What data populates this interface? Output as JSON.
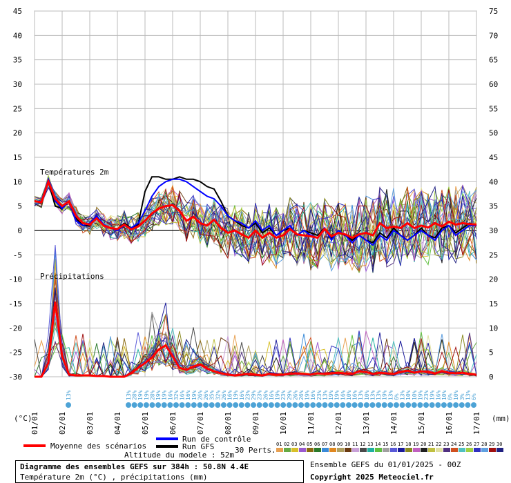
{
  "chart_data": {
    "type": "line",
    "title": "Diagramme des ensembles GEFS sur 384h : 50.8N 4.4E",
    "subtitle": "Température 2m (°C) , précipitations (mm)",
    "temp_label": "Températures 2m",
    "precip_label": "Précipitations",
    "y_left_unit": "(°C)",
    "y_right_unit": "(mm)",
    "y_left_ticks": [
      45,
      40,
      35,
      30,
      25,
      20,
      15,
      10,
      5,
      0,
      -5,
      -10,
      -15,
      -20,
      -25,
      -30
    ],
    "y_right_ticks": [
      75,
      70,
      65,
      60,
      55,
      50,
      45,
      40,
      35,
      30,
      25,
      20,
      15,
      10,
      5,
      0
    ],
    "precip_right_ticks": [
      20,
      15,
      10,
      5,
      0
    ],
    "x_labels": [
      "01/01",
      "02/01",
      "03/01",
      "04/01",
      "05/01",
      "06/01",
      "07/01",
      "08/01",
      "09/01",
      "10/01",
      "11/01",
      "12/01",
      "13/01",
      "14/01",
      "15/01",
      "16/01",
      "17/01"
    ],
    "xlim_hours": [
      0,
      384
    ],
    "ylim": [
      -30,
      45
    ],
    "grid": true,
    "mean_temp": {
      "name": "Moyenne des scénarios",
      "hours": [
        0,
        6,
        12,
        18,
        24,
        30,
        36,
        42,
        48,
        54,
        60,
        66,
        72,
        78,
        84,
        90,
        96,
        102,
        108,
        114,
        120,
        126,
        132,
        138,
        144,
        150,
        156,
        162,
        168,
        174,
        180,
        186,
        192,
        198,
        204,
        210,
        216,
        222,
        228,
        234,
        240,
        246,
        252,
        258,
        264,
        270,
        276,
        282,
        288,
        294,
        300,
        306,
        312,
        318,
        324,
        330,
        336,
        342,
        348,
        354,
        360,
        366,
        372,
        378,
        384
      ],
      "values": [
        6,
        5.8,
        10,
        6.5,
        5,
        6,
        3,
        1.5,
        1.2,
        2.5,
        1,
        0.5,
        0.3,
        1.2,
        0.2,
        0.8,
        2,
        3.5,
        4.5,
        5,
        5.2,
        4,
        2,
        2.8,
        1.5,
        1,
        2.2,
        0.5,
        -0.5,
        0,
        -0.8,
        -1.5,
        0,
        -1.5,
        -0.5,
        -1.5,
        -1,
        0.3,
        -0.8,
        -1,
        -1.2,
        -1.5,
        0.3,
        -1.2,
        -0.5,
        -0.8,
        -1.5,
        -0.8,
        -0.5,
        -1,
        1.5,
        0.5,
        0.8,
        0.5,
        1.5,
        0.5,
        1,
        0.6,
        1.5,
        0.8,
        1.8,
        1.2,
        1.5,
        1.3,
        1.2
      ]
    },
    "control_temp": {
      "name": "Run de contrôle",
      "hours": [
        0,
        6,
        12,
        18,
        24,
        30,
        36,
        42,
        48,
        54,
        60,
        66,
        72,
        78,
        84,
        90,
        96,
        102,
        108,
        114,
        120,
        126,
        132,
        138,
        144,
        150,
        156,
        162,
        168,
        174,
        180,
        186,
        192,
        198,
        204,
        210,
        216,
        222,
        228,
        234,
        240,
        246,
        252,
        258,
        264,
        270,
        276,
        282,
        288,
        294,
        300,
        306,
        312,
        318,
        324,
        330,
        336,
        342,
        348,
        354,
        360,
        366,
        372,
        378,
        384
      ],
      "values": [
        6,
        6,
        10.5,
        6,
        4.5,
        6,
        2,
        1,
        1.5,
        3,
        1.2,
        0.5,
        0,
        1,
        0.5,
        1.5,
        4,
        7,
        9,
        10,
        10.5,
        10.5,
        10,
        9,
        8,
        7,
        6.5,
        5,
        3,
        2,
        1.5,
        0.5,
        2,
        0,
        1,
        -1,
        0,
        1,
        -1,
        0,
        -1,
        -1.5,
        0.5,
        -2,
        0,
        -1,
        -2.5,
        -1,
        -2,
        -3,
        -1,
        -2,
        0,
        -1,
        -2,
        -1,
        0,
        -1,
        -2,
        0,
        1,
        -1,
        0,
        1,
        1
      ]
    },
    "gfs_temp": {
      "name": "Run GFS",
      "hours": [
        0,
        6,
        12,
        18,
        24,
        30,
        36,
        42,
        48,
        54,
        60,
        66,
        72,
        78,
        84,
        90,
        96,
        102,
        108,
        114,
        120,
        126,
        132,
        138,
        144,
        150,
        156,
        162,
        168,
        174,
        180,
        186,
        192,
        198,
        204,
        210,
        216,
        222,
        228,
        234,
        240,
        246,
        252,
        258,
        264,
        270,
        276,
        282,
        288,
        294,
        300,
        306,
        312,
        318,
        324,
        330,
        336,
        342,
        348,
        354,
        360,
        366,
        372,
        378,
        384
      ],
      "values": [
        6,
        6,
        10,
        5,
        4.5,
        6,
        2.5,
        1,
        1,
        3,
        1,
        0.5,
        0.3,
        1.5,
        0.5,
        1.2,
        8,
        11,
        11,
        10.5,
        10.5,
        11,
        10.5,
        10.5,
        10,
        9,
        8.5,
        6,
        3,
        2,
        1,
        0.5,
        1.5,
        -0.5,
        0.5,
        -1,
        0,
        0.5,
        -1,
        0,
        -0.5,
        -1,
        0.5,
        -1.5,
        -0.5,
        -1,
        -2,
        -1,
        -2,
        -2.5,
        -0.5,
        -1.5,
        0.5,
        -1,
        -2,
        -1,
        0.5,
        -1,
        -1.5,
        0.5,
        1,
        -0.5,
        0.5,
        1.5,
        1
      ]
    },
    "mean_precip": {
      "hours": [
        0,
        6,
        12,
        18,
        24,
        30,
        36,
        42,
        48,
        54,
        60,
        66,
        72,
        78,
        84,
        90,
        96,
        102,
        108,
        114,
        120,
        126,
        132,
        138,
        144,
        150,
        156,
        162,
        168,
        174,
        180,
        186,
        192,
        198,
        204,
        210,
        216,
        222,
        228,
        234,
        240,
        246,
        252,
        258,
        264,
        270,
        276,
        282,
        288,
        294,
        300,
        306,
        312,
        318,
        324,
        330,
        336,
        342,
        348,
        354,
        360,
        366,
        372,
        378,
        384
      ],
      "values": [
        0,
        0,
        2,
        11,
        3,
        0.3,
        0.2,
        0.2,
        0.2,
        0.1,
        0.1,
        0,
        0,
        0,
        0.5,
        1.3,
        2,
        2.8,
        4,
        4.6,
        3,
        1.3,
        1,
        1.5,
        1.8,
        1.2,
        0.8,
        0.5,
        0.3,
        0.2,
        0.3,
        0.4,
        0.3,
        0.2,
        0.4,
        0.3,
        0.3,
        0.4,
        0.5,
        0.4,
        0.3,
        0.5,
        0.4,
        0.5,
        0.6,
        0.5,
        0.4,
        0.8,
        0.7,
        0.4,
        0.6,
        0.5,
        0.4,
        0.7,
        0.9,
        0.6,
        0.8,
        0.7,
        0.5,
        0.8,
        0.6,
        0.5,
        0.6,
        0.4,
        0.3
      ]
    },
    "probabilities": [
      "13%",
      "28%",
      "19%",
      "19%",
      "28%",
      "19%",
      "19%",
      "16%",
      "32%",
      "16%",
      "16%",
      "19%",
      "26%",
      "26%",
      "35%",
      "32%",
      "26%",
      "16%",
      "19%",
      "16%",
      "23%",
      "29%",
      "23%",
      "26%",
      "16%",
      "19%",
      "23%",
      "29%",
      "26%",
      "26%",
      "19%",
      "16%",
      "23%",
      "13%",
      "19%",
      "19%",
      "16%",
      "10%",
      "16%",
      "13%",
      "10%",
      "13%",
      "13%",
      "19%",
      "13%",
      "6%",
      "13%",
      "10%",
      "10%",
      "19%",
      "23%",
      "19%",
      "16%",
      "10%",
      "6%",
      "10%",
      "3%",
      "13%",
      "6%"
    ]
  },
  "legend": {
    "mean_label": "Moyenne des scénarios",
    "control_label": "Run de contrôle",
    "gfs_label": "Run GFS",
    "perts_label": "30 Perts.",
    "pert_numbers": [
      "01",
      "02",
      "03",
      "04",
      "05",
      "06",
      "07",
      "08",
      "09",
      "10",
      "11",
      "12",
      "13",
      "14",
      "15",
      "16",
      "17",
      "18",
      "19",
      "20",
      "21",
      "22",
      "23",
      "24",
      "25",
      "26",
      "27",
      "28",
      "29",
      "30"
    ],
    "pert_colors": [
      "#e8a050",
      "#66aa44",
      "#d8c02a",
      "#9a5ad0",
      "#8a6a10",
      "#2a7a2a",
      "#3a8ad8",
      "#e08820",
      "#b0a060",
      "#6a3a10",
      "#c8a0d8",
      "#4a4a4a",
      "#20b0a0",
      "#60c040",
      "#a0a0a0",
      "#5a5ad8",
      "#1a1a9a",
      "#8a8a20",
      "#c060c0",
      "#202020",
      "#c0c040",
      "#e0e0a0",
      "#503080",
      "#d05020",
      "#50c0c0",
      "#a0d040",
      "#3030c0",
      "#60a0e0",
      "#a01010",
      "#202080"
    ],
    "altitude": "Altitude du modele : 52m",
    "ensemble": "Ensemble GEFS du 01/01/2025 - 00Z",
    "copyright": "Copyright 2025 Meteociel.fr"
  },
  "colors": {
    "mean": "#ff0000",
    "control": "#0000ff",
    "gfs": "#000000",
    "grid": "#bbbbbb",
    "prob": "#4da3d6"
  }
}
